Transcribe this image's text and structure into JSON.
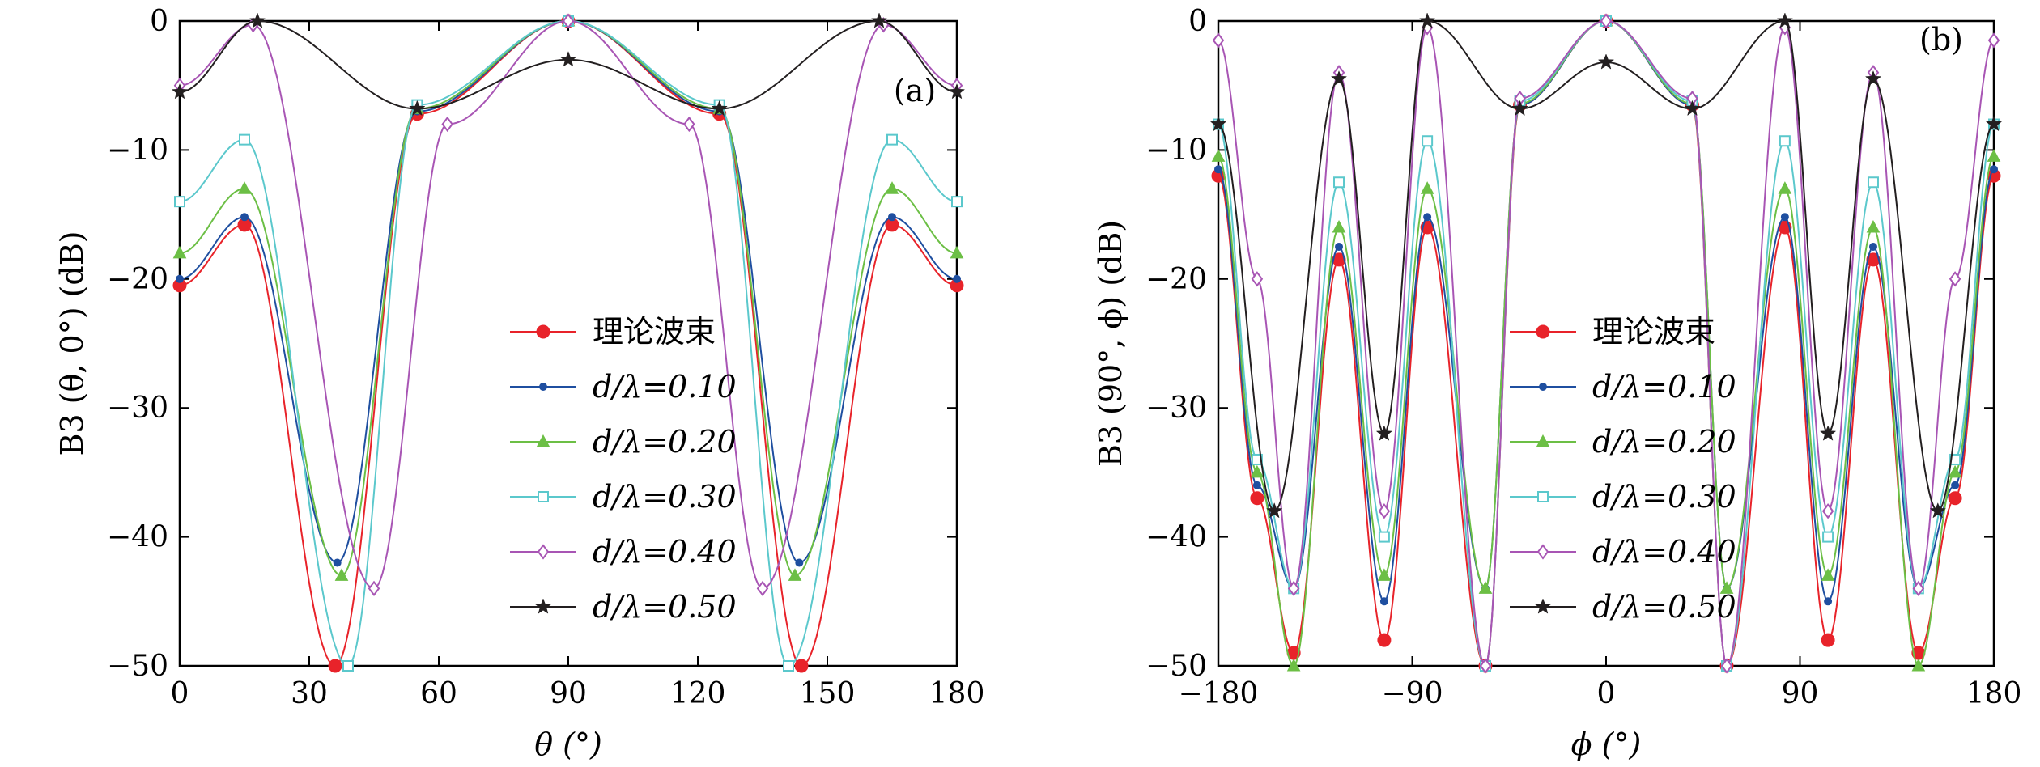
{
  "chart_data": [
    {
      "type": "line",
      "panel_label": "(a)",
      "xlabel": "θ (°)",
      "ylabel": "B3 (θ, 0°) (dB)",
      "xlim": [
        0,
        180
      ],
      "ylim": [
        -50,
        0
      ],
      "xticks": [
        0,
        30,
        60,
        90,
        120,
        150,
        180
      ],
      "xtick_labels": [
        "0",
        "30",
        "60",
        "90",
        "120",
        "150",
        "180"
      ],
      "yticks": [
        0,
        -10,
        -20,
        -30,
        -40,
        -50
      ],
      "ytick_labels": [
        "0",
        "−10",
        "−20",
        "−30",
        "−40",
        "−50"
      ],
      "legend": "center",
      "series": [
        {
          "name": "理论波束",
          "color": "#e8232a",
          "marker": "filled-circle",
          "x": [
            0,
            15,
            36,
            55,
            90,
            125,
            144,
            165,
            180
          ],
          "y": [
            -20.5,
            -15.8,
            -50,
            -7.2,
            0,
            -7.2,
            -50,
            -15.8,
            -20.5
          ]
        },
        {
          "name": "d/λ=0.10",
          "color": "#1f4fa0",
          "marker": "small-dot",
          "x": [
            0,
            15,
            36.5,
            55,
            90,
            125,
            143.5,
            165,
            180
          ],
          "y": [
            -20,
            -15.2,
            -42,
            -7.0,
            0,
            -7.0,
            -42,
            -15.2,
            -20
          ]
        },
        {
          "name": "d/λ=0.20",
          "color": "#6cbf45",
          "marker": "triangle",
          "x": [
            0,
            15,
            37.5,
            55,
            90,
            125,
            142.5,
            165,
            180
          ],
          "y": [
            -18,
            -13,
            -43,
            -6.8,
            0,
            -6.8,
            -43,
            -13,
            -18
          ]
        },
        {
          "name": "d/λ=0.30",
          "color": "#5bc8cc",
          "marker": "open-square",
          "x": [
            0,
            15,
            39,
            55,
            90,
            125,
            141,
            165,
            180
          ],
          "y": [
            -14,
            -9.2,
            -50,
            -6.5,
            0,
            -6.5,
            -50,
            -9.2,
            -14
          ]
        },
        {
          "name": "d/λ=0.40",
          "color": "#a855b4",
          "marker": "open-diamond",
          "x": [
            0,
            17,
            45,
            62,
            90,
            118,
            135,
            163,
            180
          ],
          "y": [
            -5,
            -0.3,
            -44,
            -8,
            0,
            -8,
            -44,
            -0.3,
            -5
          ]
        },
        {
          "name": "d/λ=0.50",
          "color": "#231f20",
          "marker": "star",
          "x": [
            0,
            18,
            55,
            90,
            125,
            162,
            180
          ],
          "y": [
            -5.5,
            0,
            -6.8,
            -3,
            -6.8,
            0,
            -5.5
          ]
        }
      ]
    },
    {
      "type": "line",
      "panel_label": "(b)",
      "xlabel": "ϕ (°)",
      "ylabel": "B3 (90°, ϕ) (dB)",
      "xlim": [
        -180,
        180
      ],
      "ylim": [
        -50,
        0
      ],
      "xticks": [
        -180,
        -90,
        0,
        90,
        180
      ],
      "xtick_labels": [
        "−180",
        "−90",
        "0",
        "90",
        "180"
      ],
      "yticks": [
        0,
        -10,
        -20,
        -30,
        -40,
        -50
      ],
      "ytick_labels": [
        "0",
        "−10",
        "−20",
        "−30",
        "−40",
        "−50"
      ],
      "legend": "center",
      "series": [
        {
          "name": "理论波束",
          "color": "#e8232a",
          "marker": "filled-circle",
          "x": [
            -180,
            -162,
            -145,
            -124,
            -103,
            -83,
            -56,
            -40,
            0,
            40,
            56,
            83,
            103,
            124,
            145,
            162,
            180
          ],
          "y": [
            -12,
            -37,
            -49,
            -18.5,
            -48,
            -16,
            -50,
            -6.5,
            0,
            -6.5,
            -50,
            -16,
            -48,
            -18.5,
            -49,
            -37,
            -12
          ]
        },
        {
          "name": "d/λ=0.10",
          "color": "#1f4fa0",
          "marker": "small-dot",
          "x": [
            -180,
            -162,
            -145,
            -124,
            -103,
            -83,
            -56,
            -40,
            0,
            40,
            56,
            83,
            103,
            124,
            145,
            162,
            180
          ],
          "y": [
            -11.5,
            -36,
            -44,
            -17.5,
            -45,
            -15.2,
            -44,
            -6.5,
            0,
            -6.5,
            -44,
            -15.2,
            -45,
            -17.5,
            -44,
            -36,
            -11.5
          ]
        },
        {
          "name": "d/λ=0.20",
          "color": "#6cbf45",
          "marker": "triangle",
          "x": [
            -180,
            -162,
            -145,
            -124,
            -103,
            -83,
            -56,
            -40,
            0,
            40,
            56,
            83,
            103,
            124,
            145,
            162,
            180
          ],
          "y": [
            -10.5,
            -35,
            -50,
            -16,
            -43,
            -13,
            -44,
            -6.4,
            0,
            -6.4,
            -44,
            -13,
            -43,
            -16,
            -50,
            -35,
            -10.5
          ]
        },
        {
          "name": "d/λ=0.30",
          "color": "#5bc8cc",
          "marker": "open-square",
          "x": [
            -180,
            -162,
            -145,
            -124,
            -103,
            -83,
            -56,
            -40,
            0,
            40,
            56,
            83,
            103,
            124,
            145,
            162,
            180
          ],
          "y": [
            -8,
            -34,
            -44,
            -12.5,
            -40,
            -9.3,
            -50,
            -6.2,
            0,
            -6.2,
            -50,
            -9.3,
            -40,
            -12.5,
            -44,
            -34,
            -8
          ]
        },
        {
          "name": "d/λ=0.40",
          "color": "#a855b4",
          "marker": "open-diamond",
          "x": [
            -180,
            -162,
            -145,
            -124,
            -103,
            -83,
            -56,
            -40,
            0,
            40,
            56,
            83,
            103,
            124,
            145,
            162,
            180
          ],
          "y": [
            -1.5,
            -20,
            -44,
            -4,
            -38,
            -0.5,
            -50,
            -6,
            0,
            -6,
            -50,
            -0.5,
            -38,
            -4,
            -44,
            -20,
            -1.5
          ]
        },
        {
          "name": "d/λ=0.50",
          "color": "#231f20",
          "marker": "star",
          "x": [
            -180,
            -154,
            -124,
            -103,
            -83,
            -40,
            0,
            40,
            83,
            103,
            124,
            154,
            180
          ],
          "y": [
            -8,
            -38,
            -4.5,
            -32,
            0,
            -6.8,
            -3.2,
            -6.8,
            0,
            -32,
            -4.5,
            -38,
            -8
          ]
        }
      ]
    }
  ]
}
